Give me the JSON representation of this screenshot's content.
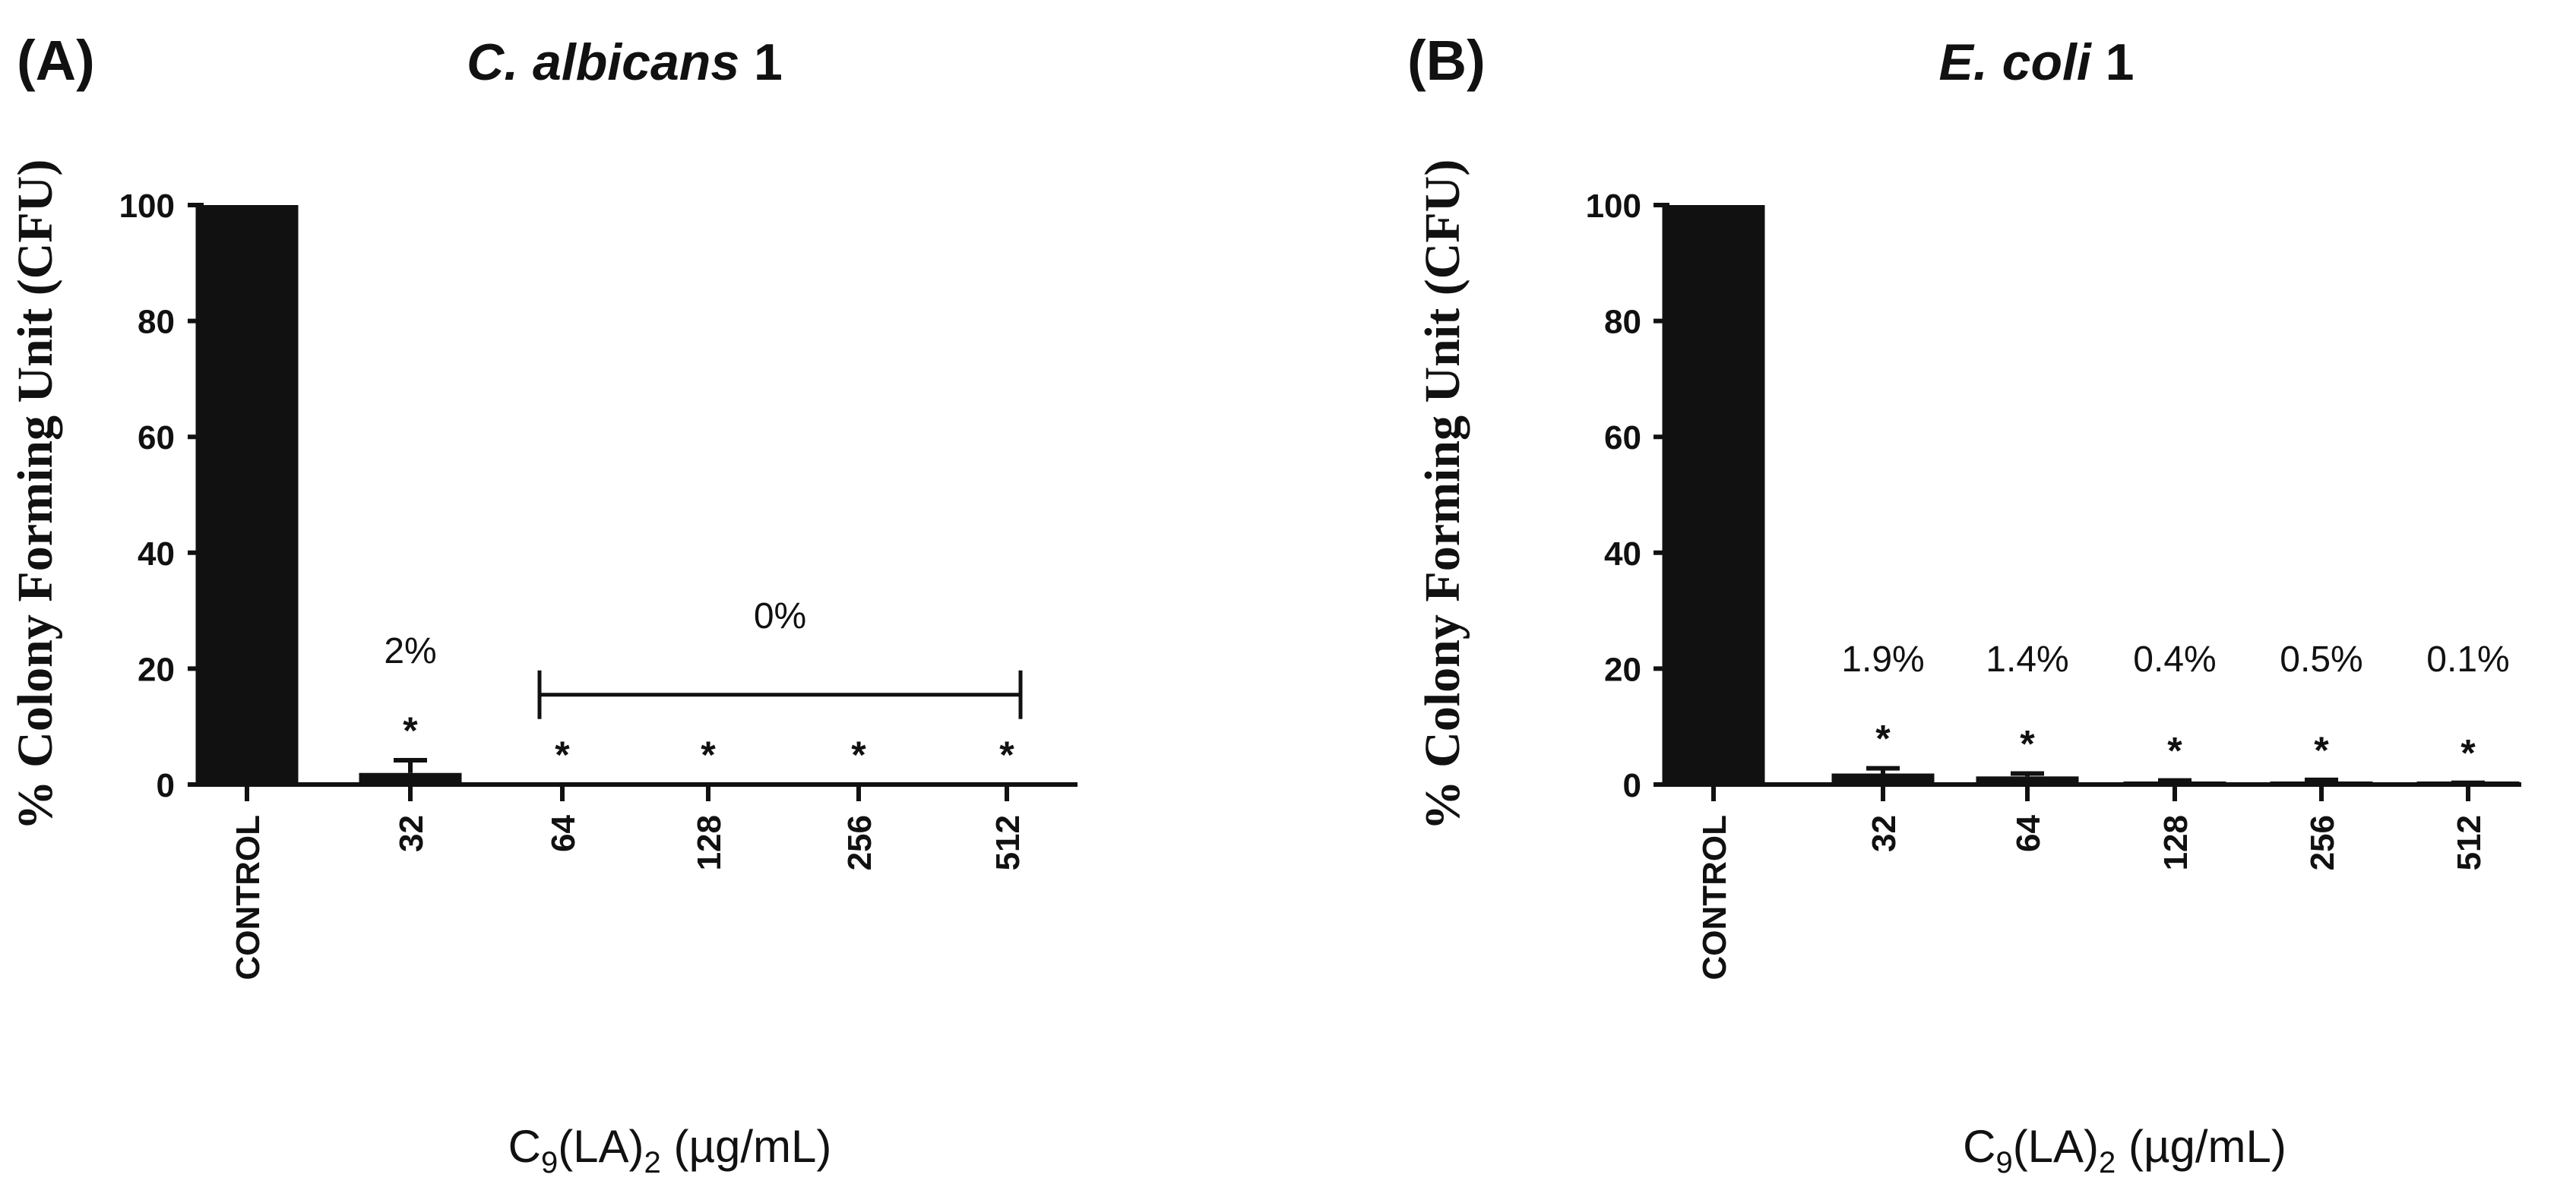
{
  "chart_data": [
    {
      "type": "bar",
      "panel_label": "(A)",
      "title": "C. albicans 1",
      "title_italic": "C. albicans",
      "title_suffix": "1",
      "ylabel": "% Colony Forming Unit (CFU)",
      "xlabel_parts": {
        "base": "C",
        "sub1": "9",
        "mid": "(LA)",
        "sub2": "2",
        "unit": "(µg/mL)"
      },
      "ylim": [
        0,
        100
      ],
      "yticks": [
        "0",
        "20",
        "40",
        "60",
        "80",
        "100"
      ],
      "categories": [
        "CONTROL",
        "32",
        "64",
        "128",
        "256",
        "512"
      ],
      "values": [
        100,
        2,
        0,
        0,
        0,
        0
      ],
      "errors": [
        0,
        2.2,
        0,
        0,
        0,
        0
      ],
      "significance": [
        "",
        "*",
        "*",
        "*",
        "*",
        "*"
      ],
      "annotations": [
        {
          "text": "2%",
          "category_index": 1
        },
        {
          "text": "0%",
          "bracket_from": 2,
          "bracket_to": 5
        }
      ]
    },
    {
      "type": "bar",
      "panel_label": "(B)",
      "title": "E. coli 1",
      "title_italic": "E. coli",
      "title_suffix": "1",
      "ylabel": "% Colony Forming Unit (CFU)",
      "xlabel_parts": {
        "base": "C",
        "sub1": "9",
        "mid": "(LA)",
        "sub2": "2",
        "unit": "(µg/mL)"
      },
      "ylim": [
        0,
        100
      ],
      "yticks": [
        "0",
        "20",
        "40",
        "60",
        "80",
        "100"
      ],
      "categories": [
        "CONTROL",
        "32",
        "64",
        "128",
        "256",
        "512"
      ],
      "values": [
        100,
        1.9,
        1.4,
        0.4,
        0.5,
        0.1
      ],
      "errors": [
        0,
        0.9,
        0.5,
        0.3,
        0.3,
        0.2
      ],
      "significance": [
        "",
        "*",
        "*",
        "*",
        "*",
        "*"
      ],
      "annotations": [
        {
          "text": "1.9%",
          "category_index": 1
        },
        {
          "text": "1.4%",
          "category_index": 2
        },
        {
          "text": "0.4%",
          "category_index": 3
        },
        {
          "text": "0.5%",
          "category_index": 4
        },
        {
          "text": "0.1%",
          "category_index": 5
        }
      ]
    }
  ]
}
